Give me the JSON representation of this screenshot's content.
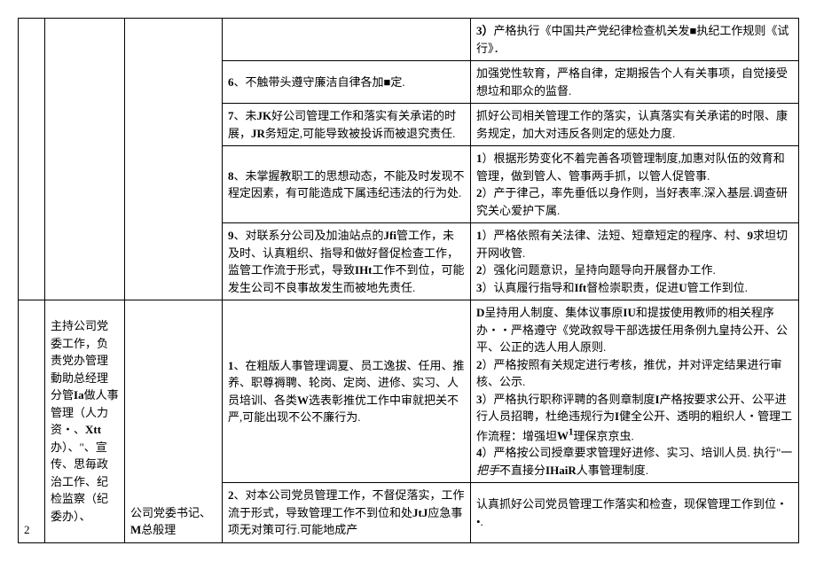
{
  "rows": [
    {
      "risk": "",
      "measure": "<span class='bold'>3）</span>产格执行《中国共产党纪律检查机关发■执纪工作规则《试行》．"
    },
    {
      "risk": "<span class='bold'>6</span>、不触带头遵守廉洁自律各加■定.",
      "measure": "加强党性软育，严格自律，定期报告个人有关事项，自觉接受想垃和耶众的监督."
    },
    {
      "risk": "<span class='bold'>7</span>、未<span class='bold'>JK</span>好公司管理工作和落实有关承诺的时展，<span class='bold'>JR</span>务短定,可能导致被投诉而被退究责任.",
      "measure": "抓好公司相关管理工作的落实，认真落实有关承诺的时限、康务规定，加大对违反各则定的惩处力度."
    },
    {
      "risk": "<span class='bold'>8</span>、未掌握教职工的思想动态，不能及时发现不程定因素，有可能造成下属违纪违法的行为处.",
      "measure": "<span class='bold'>1</span>）根据形势变化不着完善各项管理制度,加惠对队伍的效育和管理，做到管人、管事两手抓，以管人促管事.<br><span class='bold'>2</span>）产于律己，率先垂低以身作则，当好表率.深入基层.调查研究关心爱护下属."
    },
    {
      "risk": "<span class='bold'>9</span>、对联系分公司及加油站点的<span class='bold'>Jfi</span>管工作，未及时、认真粗织、指导和做好督促检查工作，监管工作流于形式，导致<span class='bold'>IHt</span>工作不到位，可能发生公司不良事故发生而被地先责任.",
      "measure": "<span class='bold'>1</span>）严格依照有关法律、法短、短章短定的程序、村、<span class='bold'>9</span>求坦切开网收管.<br><span class='bold'>2</span>）强化问题意识，呈持向题导向开展督办工作.<br><span class='bold'>3</span>）认真履行指导和<span class='bold'>Ift</span>督检崇职责，促进<span class='bold'>U</span>管工作到位."
    }
  ],
  "section2": {
    "num": "2",
    "role": "主持公司党委工作，负责党办管理 動助总经理分管<span class='bold'>Ia</span>做人事管理（人力资・、<span class='bold'>Xtt</span>办）、\"、宣传、思毎政治工作、纪检监察（纪委办）、",
    "name": "公司党委书记、<span class='bold'>M</span>总般理",
    "row1": {
      "risk": "<span class='bold'>1</span>、在粗版人事管理调夏、员工逸拔、任用、推养、职尊褥聘、轮岗、定岗、进修、实习、人员培训、各类<span class='bold'>W</span>选表彰推优工作中审就把关不严,可能出现不公不廉行为.",
      "measure": "<span class='bold'>D</span>呈持用人制度、集体议事原<span class='bold'>IU</span>和提拔使用教师的相关程序办・・严格遵守《党政叙导干部选拔任用条例九皇持公开、公平、公正的选人用人原则.<br><span class='bold'>2</span>）严格按照有关规定进行考核，推优，并对评定结果进行审核、公示.<br><span class='bold'>3</span>）严格执行职称评聘的各则章制度<span class='bold'>I</span>产格按要求公开、公平进行人员招聘，杜绝违规行为<span class='bold'>I</span>健全公开、透明的粗织人・管理工作流程：增强坦<span class='bold'>W<sup>1</sup></span>理保京京虫.<br><span class='bold'>4</span>）严格按公司授章要求管理好进修、实习、培训人员. 执行\"一<i>把手</i>不直接分<span class='bold'>IHaiR</span>人事管理制度."
    },
    "row2": {
      "risk": "<span class='bold'>2</span>、对本公司党员管理工作，不督促落实，工作流于形式，导致管理工作不到位和处<span class='bold'>JtJ</span>应急事项无对策可行.可能地成产",
      "measure": "认真抓好公司党员管理工作落实和检查，现保管理工作到位・•."
    }
  }
}
